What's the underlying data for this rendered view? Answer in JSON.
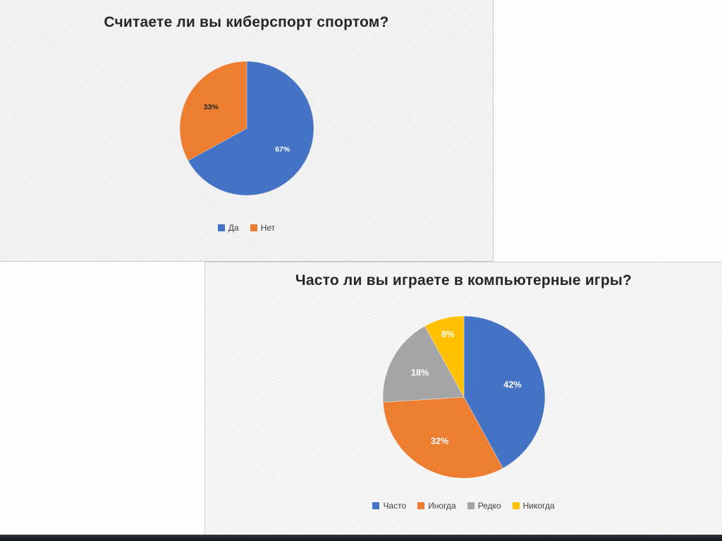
{
  "slide": {
    "bottom_bar_color": "#20202a",
    "panel_bg": "#f0f0f0"
  },
  "chart_data": [
    {
      "type": "pie",
      "title": "Считаете ли вы киберспорт спортом?",
      "labels": [
        "Да",
        "Нет"
      ],
      "values": [
        67,
        33
      ],
      "colors": [
        "#4472C4",
        "#ED7D31"
      ],
      "data_labels": [
        "67%",
        "33%"
      ],
      "data_label_colors": [
        "#FFFFFF",
        "#262626"
      ],
      "legend_position": "bottom",
      "start_angle_deg": 0,
      "direction": "clockwise"
    },
    {
      "type": "pie",
      "title": "Часто ли вы играете в компьютерные игры?",
      "labels": [
        "Часто",
        "Иногда",
        "Редко",
        "Никогда"
      ],
      "values": [
        42,
        32,
        18,
        8
      ],
      "colors": [
        "#4472C4",
        "#ED7D31",
        "#A5A5A5",
        "#FFC000"
      ],
      "data_labels": [
        "42%",
        "32%",
        "18%",
        "8%"
      ],
      "data_label_colors": [
        "#FFFFFF",
        "#FFFFFF",
        "#FFFFFF",
        "#FFFFFF"
      ],
      "legend_position": "bottom",
      "start_angle_deg": 0,
      "direction": "clockwise"
    }
  ]
}
